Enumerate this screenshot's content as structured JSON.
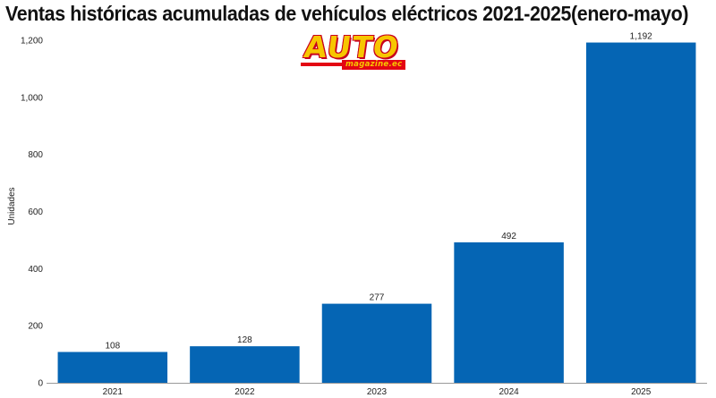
{
  "chart_data": {
    "type": "bar",
    "title": "Ventas históricas acumuladas de vehículos eléctricos 2021-2025(enero-mayo)",
    "xlabel": "",
    "ylabel": "Unidades",
    "categories": [
      "2021",
      "2022",
      "2023",
      "2024",
      "2025"
    ],
    "values": [
      108,
      128,
      277,
      492,
      1192
    ],
    "value_labels": [
      "108",
      "128",
      "277",
      "492",
      "1,192"
    ],
    "ylim": [
      0,
      1200
    ],
    "yticks": [
      0,
      200,
      400,
      600,
      800,
      1000,
      1200
    ],
    "ytick_labels": [
      "0",
      "200",
      "400",
      "600",
      "800",
      "1,000",
      "1,200"
    ],
    "grid": false,
    "bar_color": "#0565b4"
  },
  "logo": {
    "word": "AUTO",
    "subtitle": "magazine.ec"
  }
}
